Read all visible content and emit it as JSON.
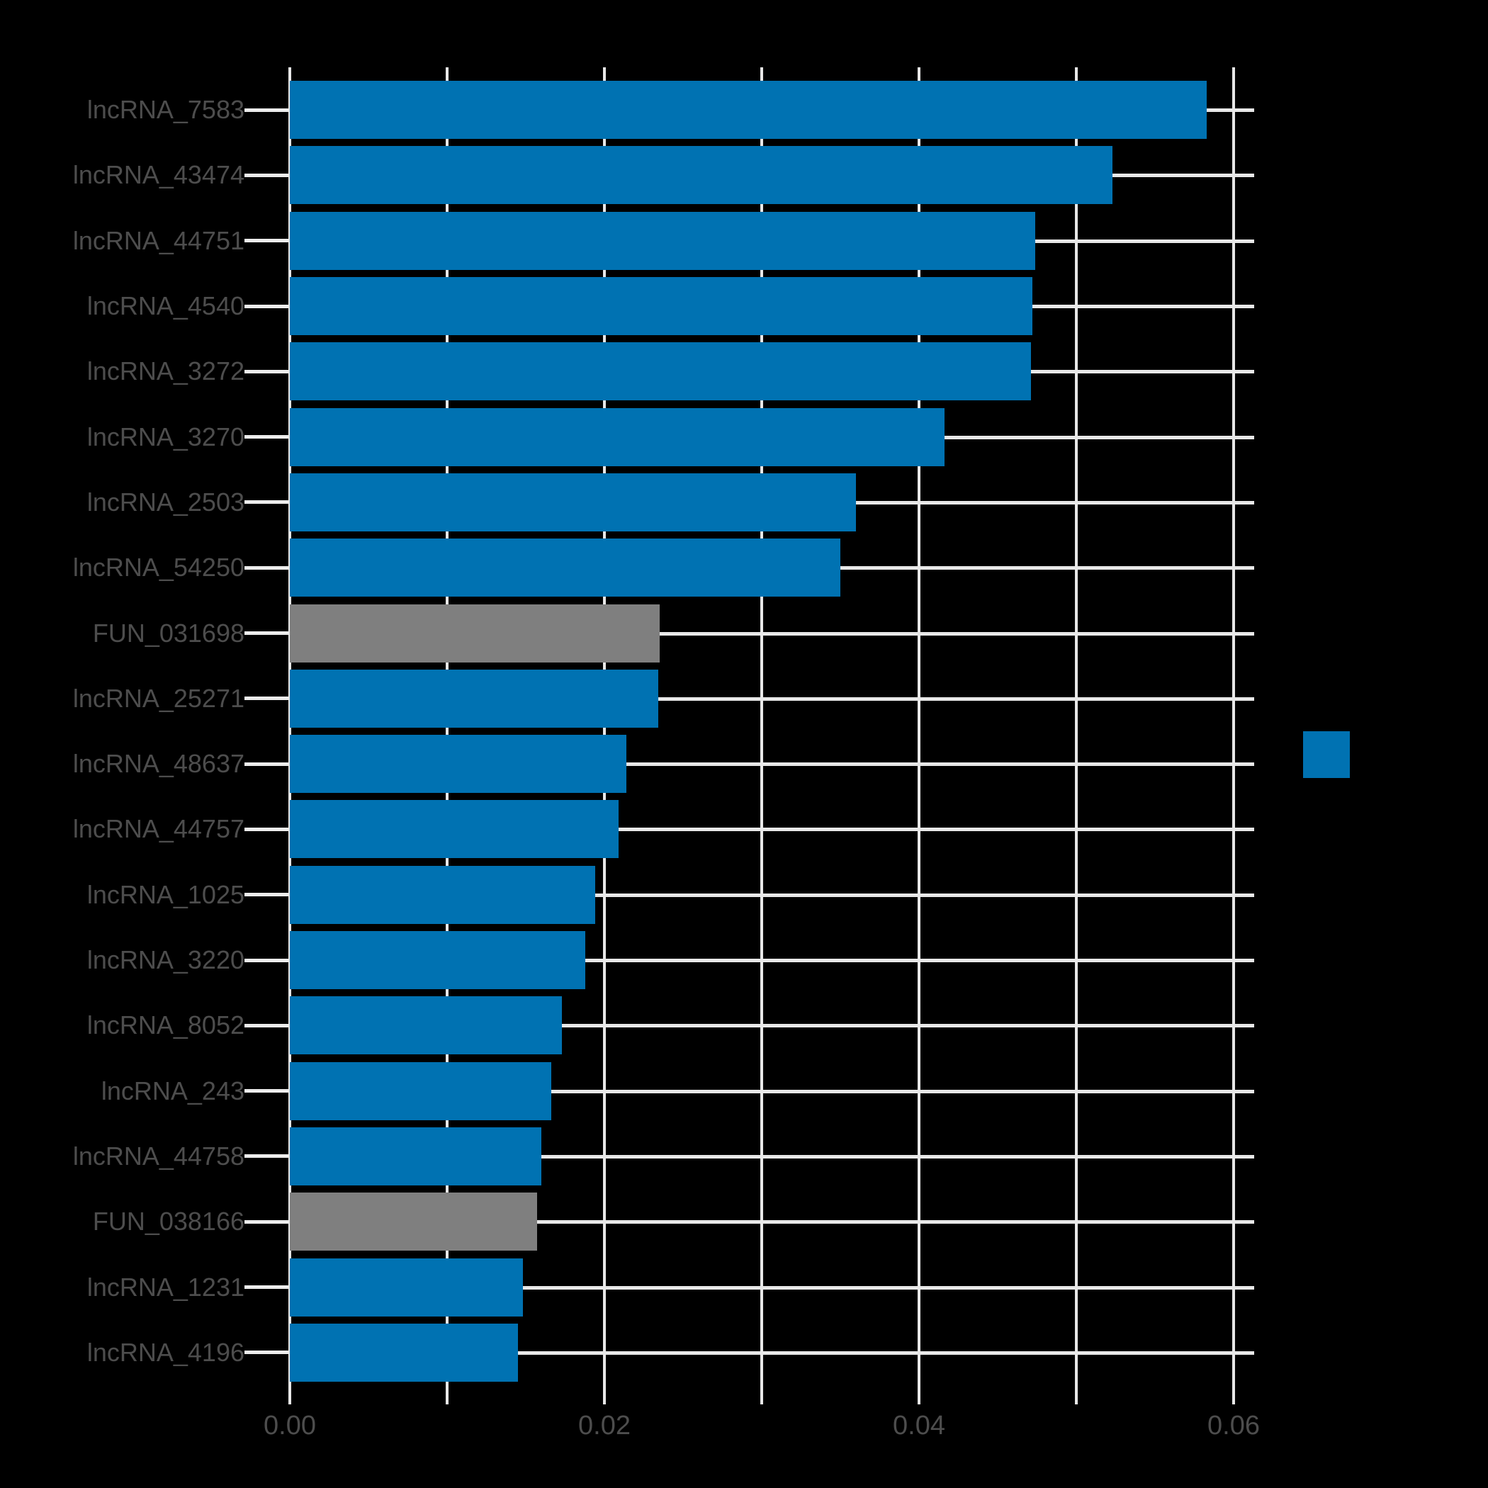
{
  "chart_data": {
    "type": "bar",
    "orientation": "horizontal",
    "title": "",
    "xlabel": "",
    "ylabel": "",
    "categories": [
      "lncRNA_7583",
      "lncRNA_43474",
      "lncRNA_44751",
      "lncRNA_4540",
      "lncRNA_3272",
      "lncRNA_3270",
      "lncRNA_2503",
      "lncRNA_54250",
      "FUN_031698",
      "lncRNA_25271",
      "lncRNA_48637",
      "lncRNA_44757",
      "lncRNA_1025",
      "lncRNA_3220",
      "lncRNA_8052",
      "lncRNA_243",
      "lncRNA_44758",
      "FUN_038166",
      "lncRNA_1231",
      "lncRNA_4196"
    ],
    "values": [
      0.0583,
      0.0523,
      0.0474,
      0.0472,
      0.0471,
      0.0416,
      0.036,
      0.035,
      0.0235,
      0.0234,
      0.0214,
      0.0209,
      0.0194,
      0.0188,
      0.0173,
      0.0166,
      0.016,
      0.0157,
      0.0148,
      0.0145
    ],
    "bar_colors": [
      "#0072B2",
      "#0072B2",
      "#0072B2",
      "#0072B2",
      "#0072B2",
      "#0072B2",
      "#0072B2",
      "#0072B2",
      "#7f7f7f",
      "#0072B2",
      "#0072B2",
      "#0072B2",
      "#0072B2",
      "#0072B2",
      "#0072B2",
      "#0072B2",
      "#0072B2",
      "#7f7f7f",
      "#0072B2",
      "#0072B2"
    ],
    "x_ticks": [
      "0.00",
      "0.02",
      "0.04",
      "0.06"
    ],
    "x_tick_values": [
      0,
      0.02,
      0.04,
      0.06
    ],
    "x_minor_step": 0.01,
    "xlim": [
      0,
      0.0613
    ],
    "grid": "on",
    "legend_position": "right"
  },
  "legend": {
    "swatch_color": "#0072B2",
    "label": ""
  },
  "colors": {
    "background": "#000000",
    "bar_blue": "#0072B2",
    "bar_gray": "#7f7f7f",
    "grid": "#e8e8e8",
    "tick_text": "#4d4d4d"
  }
}
